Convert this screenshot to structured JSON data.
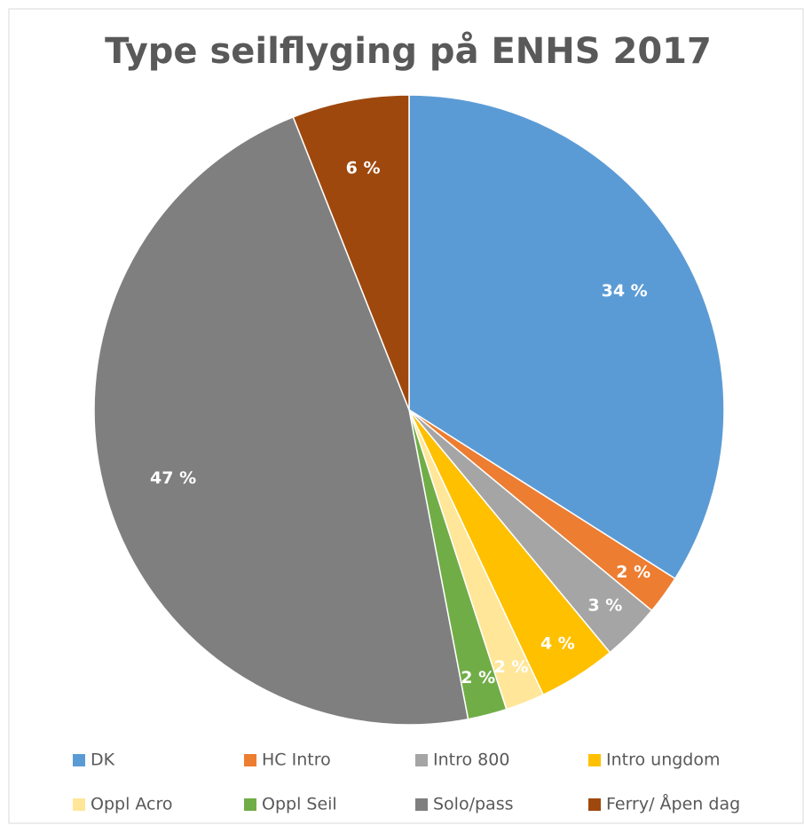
{
  "chart_data": {
    "type": "pie",
    "title": "Type seilflyging på ENHS 2017",
    "categories": [
      "DK",
      "HC Intro",
      "Intro 800",
      "Intro ungdom",
      "Oppl Acro",
      "Oppl Seil",
      "Solo/pass",
      "Ferry/ Åpen dag"
    ],
    "values": [
      34,
      2,
      3,
      4,
      2,
      2,
      47,
      6
    ],
    "value_labels": [
      "34 %",
      "2 %",
      "3 %",
      "4 %",
      "2 %",
      "2 %",
      "47 %",
      "6 %"
    ],
    "colors": [
      "#5b9bd5",
      "#ed7d31",
      "#a5a5a5",
      "#ffc000",
      "#ffe699",
      "#70ad47",
      "#7f7f7f",
      "#9e480e"
    ],
    "legend": "bottom"
  }
}
